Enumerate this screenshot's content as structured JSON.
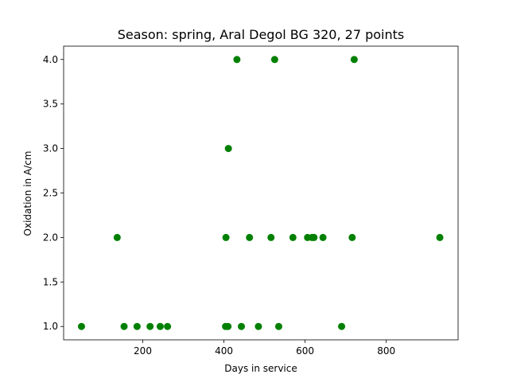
{
  "chart_data": {
    "type": "scatter",
    "title": "Season: spring, Aral Degol BG 320, 27 points",
    "xlabel": "Days in service",
    "ylabel": "Oxidation in A/cm",
    "xlim": [
      5,
      977
    ],
    "ylim": [
      0.85,
      4.15
    ],
    "xticks": [
      200,
      400,
      600,
      800
    ],
    "yticks": [
      1.0,
      1.5,
      2.0,
      2.5,
      3.0,
      3.5,
      4.0
    ],
    "grid": false,
    "marker_color": "#008000",
    "series": [
      {
        "points": [
          [
            49,
            1.0
          ],
          [
            137,
            2.0
          ],
          [
            154,
            1.0
          ],
          [
            186,
            1.0
          ],
          [
            218,
            1.0
          ],
          [
            243,
            1.0
          ],
          [
            261,
            1.0
          ],
          [
            404,
            1.0
          ],
          [
            410,
            1.0
          ],
          [
            405,
            2.0
          ],
          [
            411,
            3.0
          ],
          [
            432,
            4.0
          ],
          [
            443,
            1.0
          ],
          [
            463,
            2.0
          ],
          [
            485,
            1.0
          ],
          [
            516,
            2.0
          ],
          [
            525,
            4.0
          ],
          [
            535,
            1.0
          ],
          [
            570,
            2.0
          ],
          [
            606,
            2.0
          ],
          [
            617,
            2.0
          ],
          [
            644,
            2.0
          ],
          [
            690,
            1.0
          ],
          [
            716,
            2.0
          ],
          [
            721,
            4.0
          ],
          [
            932,
            2.0
          ],
          [
            622,
            2.0
          ]
        ]
      }
    ]
  }
}
